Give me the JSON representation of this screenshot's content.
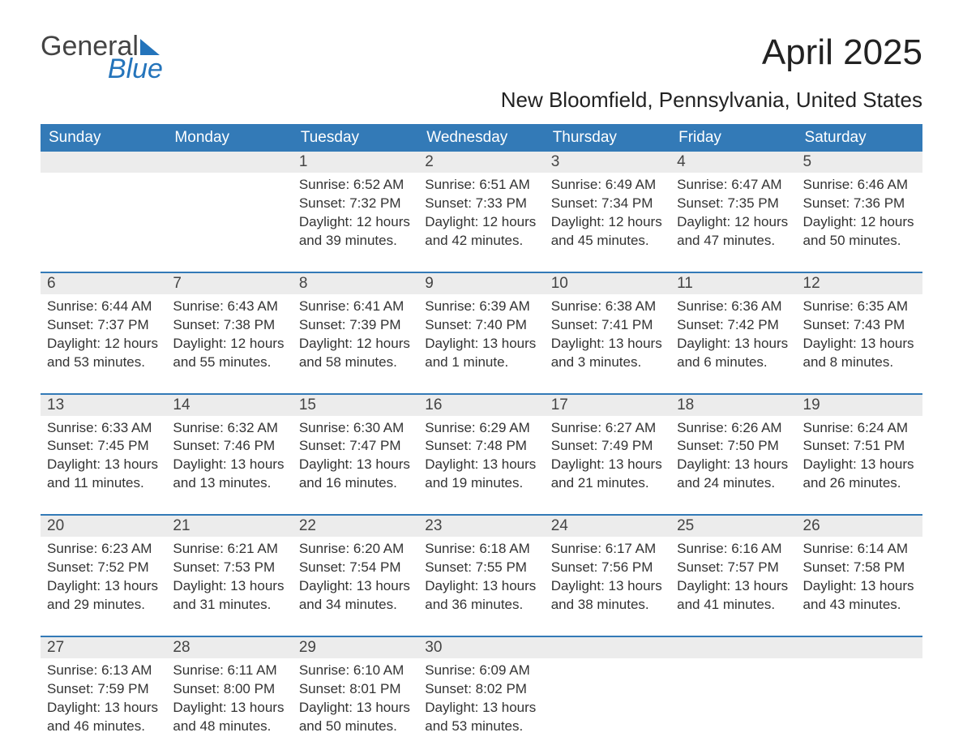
{
  "brand": {
    "part1": "General",
    "part2": "Blue"
  },
  "title": "April 2025",
  "location": "New Bloomfield, Pennsylvania, United States",
  "colors": {
    "header_bg": "#337ab7",
    "header_text": "#ffffff",
    "daynum_bg": "#ececec",
    "text": "#333333",
    "brand_blue": "#2474bb",
    "page_bg": "#ffffff",
    "week_border": "#337ab7"
  },
  "typography": {
    "title_fontsize": 44,
    "subtitle_fontsize": 26,
    "header_fontsize": 19,
    "daynum_fontsize": 19,
    "cell_fontsize": 17,
    "font_family": "Segoe UI"
  },
  "day_headers": [
    "Sunday",
    "Monday",
    "Tuesday",
    "Wednesday",
    "Thursday",
    "Friday",
    "Saturday"
  ],
  "weeks": [
    {
      "nums": [
        "",
        "",
        "1",
        "2",
        "3",
        "4",
        "5"
      ],
      "cells": [
        "",
        "",
        "Sunrise: 6:52 AM\nSunset: 7:32 PM\nDaylight: 12 hours and 39 minutes.",
        "Sunrise: 6:51 AM\nSunset: 7:33 PM\nDaylight: 12 hours and 42 minutes.",
        "Sunrise: 6:49 AM\nSunset: 7:34 PM\nDaylight: 12 hours and 45 minutes.",
        "Sunrise: 6:47 AM\nSunset: 7:35 PM\nDaylight: 12 hours and 47 minutes.",
        "Sunrise: 6:46 AM\nSunset: 7:36 PM\nDaylight: 12 hours and 50 minutes."
      ]
    },
    {
      "nums": [
        "6",
        "7",
        "8",
        "9",
        "10",
        "11",
        "12"
      ],
      "cells": [
        "Sunrise: 6:44 AM\nSunset: 7:37 PM\nDaylight: 12 hours and 53 minutes.",
        "Sunrise: 6:43 AM\nSunset: 7:38 PM\nDaylight: 12 hours and 55 minutes.",
        "Sunrise: 6:41 AM\nSunset: 7:39 PM\nDaylight: 12 hours and 58 minutes.",
        "Sunrise: 6:39 AM\nSunset: 7:40 PM\nDaylight: 13 hours and 1 minute.",
        "Sunrise: 6:38 AM\nSunset: 7:41 PM\nDaylight: 13 hours and 3 minutes.",
        "Sunrise: 6:36 AM\nSunset: 7:42 PM\nDaylight: 13 hours and 6 minutes.",
        "Sunrise: 6:35 AM\nSunset: 7:43 PM\nDaylight: 13 hours and 8 minutes."
      ]
    },
    {
      "nums": [
        "13",
        "14",
        "15",
        "16",
        "17",
        "18",
        "19"
      ],
      "cells": [
        "Sunrise: 6:33 AM\nSunset: 7:45 PM\nDaylight: 13 hours and 11 minutes.",
        "Sunrise: 6:32 AM\nSunset: 7:46 PM\nDaylight: 13 hours and 13 minutes.",
        "Sunrise: 6:30 AM\nSunset: 7:47 PM\nDaylight: 13 hours and 16 minutes.",
        "Sunrise: 6:29 AM\nSunset: 7:48 PM\nDaylight: 13 hours and 19 minutes.",
        "Sunrise: 6:27 AM\nSunset: 7:49 PM\nDaylight: 13 hours and 21 minutes.",
        "Sunrise: 6:26 AM\nSunset: 7:50 PM\nDaylight: 13 hours and 24 minutes.",
        "Sunrise: 6:24 AM\nSunset: 7:51 PM\nDaylight: 13 hours and 26 minutes."
      ]
    },
    {
      "nums": [
        "20",
        "21",
        "22",
        "23",
        "24",
        "25",
        "26"
      ],
      "cells": [
        "Sunrise: 6:23 AM\nSunset: 7:52 PM\nDaylight: 13 hours and 29 minutes.",
        "Sunrise: 6:21 AM\nSunset: 7:53 PM\nDaylight: 13 hours and 31 minutes.",
        "Sunrise: 6:20 AM\nSunset: 7:54 PM\nDaylight: 13 hours and 34 minutes.",
        "Sunrise: 6:18 AM\nSunset: 7:55 PM\nDaylight: 13 hours and 36 minutes.",
        "Sunrise: 6:17 AM\nSunset: 7:56 PM\nDaylight: 13 hours and 38 minutes.",
        "Sunrise: 6:16 AM\nSunset: 7:57 PM\nDaylight: 13 hours and 41 minutes.",
        "Sunrise: 6:14 AM\nSunset: 7:58 PM\nDaylight: 13 hours and 43 minutes."
      ]
    },
    {
      "nums": [
        "27",
        "28",
        "29",
        "30",
        "",
        "",
        ""
      ],
      "cells": [
        "Sunrise: 6:13 AM\nSunset: 7:59 PM\nDaylight: 13 hours and 46 minutes.",
        "Sunrise: 6:11 AM\nSunset: 8:00 PM\nDaylight: 13 hours and 48 minutes.",
        "Sunrise: 6:10 AM\nSunset: 8:01 PM\nDaylight: 13 hours and 50 minutes.",
        "Sunrise: 6:09 AM\nSunset: 8:02 PM\nDaylight: 13 hours and 53 minutes.",
        "",
        "",
        ""
      ]
    }
  ]
}
